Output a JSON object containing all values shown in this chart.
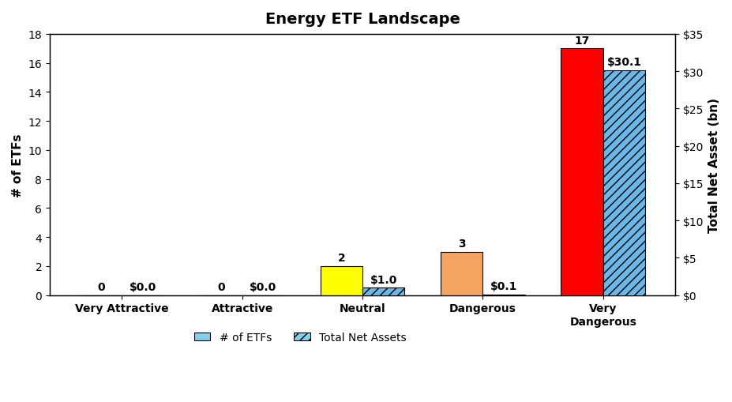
{
  "title": "Energy ETF Landscape",
  "categories": [
    "Very Attractive",
    "Attractive",
    "Neutral",
    "Dangerous",
    "Very\nDangerous"
  ],
  "etf_counts": [
    0,
    0,
    2,
    3,
    17
  ],
  "net_assets": [
    0.0,
    0.0,
    1.0,
    0.1,
    30.1
  ],
  "etf_labels": [
    "0",
    "0",
    "2",
    "3",
    "17"
  ],
  "asset_labels": [
    "$0.0",
    "$0.0",
    "$1.0",
    "$0.1",
    "$30.1"
  ],
  "bar_colors": [
    "#c0c0c0",
    "#c0c0c0",
    "#ffff00",
    "#f4a460",
    "#ff0000"
  ],
  "hatch_color": "#6bb8e8",
  "ylabel_left": "# of ETFs",
  "ylabel_right": "Total Net Asset (bn)",
  "ylim_left": [
    0,
    18
  ],
  "ylim_right": [
    0,
    35
  ],
  "yticks_left": [
    0,
    2,
    4,
    6,
    8,
    10,
    12,
    14,
    16,
    18
  ],
  "yticks_right": [
    0,
    5,
    10,
    15,
    20,
    25,
    30,
    35
  ],
  "ytick_labels_right": [
    "$0",
    "$5",
    "$10",
    "$15",
    "$20",
    "$25",
    "$30",
    "$35"
  ],
  "legend_etf_color": "#87ceeb",
  "legend_asset_color": "#87ceeb",
  "background_color": "#ffffff",
  "bar_width": 0.35,
  "title_fontsize": 14,
  "axis_fontsize": 11,
  "tick_fontsize": 10,
  "annotation_fontsize": 10
}
